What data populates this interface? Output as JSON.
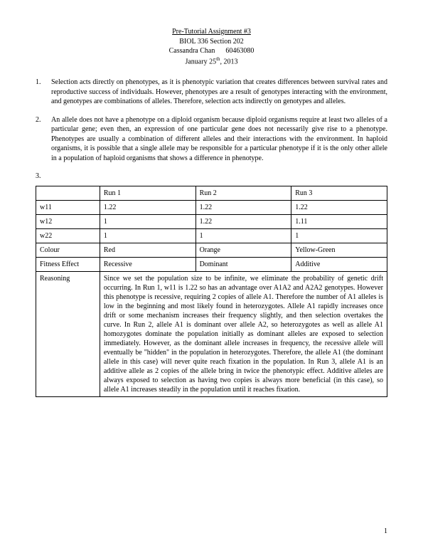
{
  "header": {
    "title": "Pre-Tutorial Assignment #3",
    "course": "BIOL 336 Section 202",
    "name": "Cassandra Chan",
    "id": "60463080",
    "date_prefix": "January 25",
    "date_sup": "th",
    "date_suffix": ", 2013"
  },
  "q1": {
    "num": "1.",
    "text": "Selection acts directly on phenotypes, as it is phenotypic variation that creates differences between survival rates and reproductive success of individuals. However, phenotypes are a result of genotypes interacting with the environment, and genotypes are combinations of alleles. Therefore, selection acts indirectly on genotypes and alleles."
  },
  "q2": {
    "num": "2.",
    "text": "An allele does not have a phenotype on a diploid organism because diploid organisms require at least two alleles of a particular gene; even then, an expression of one particular gene does not necessarily give rise to a phenotype. Phenotypes are usually a combination of different alleles and their interactions with the environment. In haploid organisms, it is possible that a single allele may be responsible for a particular phenotype if it is the only other allele in a population of haploid organisms that shows a difference in phenotype."
  },
  "q3": {
    "num": "3."
  },
  "table": {
    "headers": {
      "c0": "",
      "c1": "Run 1",
      "c2": "Run 2",
      "c3": "Run 3"
    },
    "rows": {
      "w11": {
        "label": "w11",
        "r1": "1.22",
        "r2": "1.22",
        "r3": "1.22"
      },
      "w12": {
        "label": "w12",
        "r1": "1",
        "r2": "1.22",
        "r3": "1.11"
      },
      "w22": {
        "label": "w22",
        "r1": "1",
        "r2": "1",
        "r3": "1"
      },
      "colour": {
        "label": "Colour",
        "r1": "Red",
        "r2": "Orange",
        "r3": "Yellow-Green"
      },
      "fitness": {
        "label": "Fitness Effect",
        "r1": "Recessive",
        "r2": "Dominant",
        "r3": "Additive"
      },
      "reasoning": {
        "label": "Reasoning",
        "text": "Since we set the population size to be infinite, we eliminate the probability of genetic drift occurring. In Run 1, w11 is 1.22 so has an advantage over A1A2 and A2A2 genotypes. However this phenotype is recessive, requiring 2 copies of allele A1. Therefore the number of A1 alleles is low in the beginning and most likely found in heterozygotes. Allele A1 rapidly increases once drift or some mechanism increases their frequency slightly, and then selection overtakes the curve. In Run 2, allele A1 is dominant over allele A2, so heterozygotes as well as allele A1 homozygotes dominate the population initially as dominant alleles are exposed to selection immediately. However, as the dominant allele increases in frequency, the recessive allele will eventually be \"hidden\" in the population in heterozygotes. Therefore, the allele A1 (the dominant allele in this case) will never quite reach fixation in the population. In Run 3, allele A1 is an additive allele as 2 copies of the allele bring in twice the phenotypic effect. Additive alleles are always exposed to selection as having two copies is always more beneficial (in this case), so allele A1 increases steadily in the population until it reaches fixation."
      }
    }
  },
  "pagenum": "1"
}
